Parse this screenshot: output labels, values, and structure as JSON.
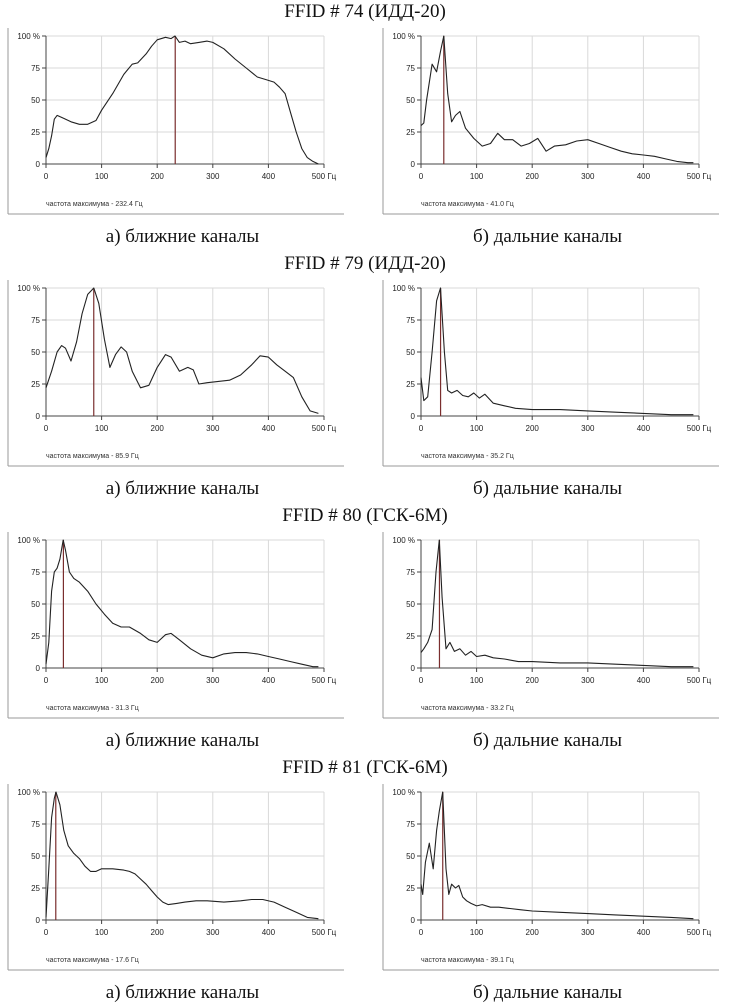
{
  "figure": {
    "blocks": [
      {
        "title": "FFID # 74 (ИДД-20)",
        "near_caption": "а) ближние каналы",
        "far_caption": "б) дальние каналы"
      },
      {
        "title": "FFID # 79 (ИДД-20)",
        "near_caption": "а) ближние каналы",
        "far_caption": "б) дальние каналы"
      },
      {
        "title": "FFID # 80 (ГСК-6М)",
        "near_caption": "а) ближние каналы",
        "far_caption": "б) дальние каналы"
      },
      {
        "title": "FFID # 81 (ГСК-6М)",
        "near_caption": "а) ближние каналы",
        "far_caption": "б) дальние каналы"
      }
    ]
  },
  "colors": {
    "curve": "#222222",
    "marker": "#7a2e2e",
    "grid": "#d9d9d9",
    "axis": "#444444",
    "frame": "#9a9a9a"
  },
  "chart_data": [
    {
      "type": "line",
      "panel": "near",
      "block": 0,
      "xlim": [
        0,
        500
      ],
      "ylim": [
        0,
        100
      ],
      "xticks": [
        "0",
        "100",
        "200",
        "300",
        "400",
        "500 Гц"
      ],
      "yticks": [
        "0",
        "25",
        "50",
        "75",
        "100 %"
      ],
      "peak_x": 232.4,
      "footer": "частота максимума - 232.4 Гц",
      "x": [
        0,
        5,
        10,
        15,
        20,
        30,
        45,
        60,
        75,
        90,
        100,
        120,
        140,
        155,
        165,
        180,
        190,
        200,
        215,
        225,
        232,
        240,
        250,
        260,
        275,
        290,
        300,
        320,
        340,
        360,
        380,
        395,
        410,
        420,
        430,
        440,
        450,
        460,
        470,
        480,
        490
      ],
      "y": [
        5,
        12,
        22,
        35,
        38,
        36,
        33,
        31,
        31,
        34,
        42,
        55,
        70,
        78,
        79,
        86,
        92,
        97,
        99,
        98,
        100,
        95,
        96,
        94,
        95,
        96,
        95,
        90,
        82,
        75,
        68,
        66,
        64,
        60,
        55,
        40,
        25,
        12,
        5,
        2,
        0
      ]
    },
    {
      "type": "line",
      "panel": "far",
      "block": 0,
      "xlim": [
        0,
        500
      ],
      "ylim": [
        0,
        100
      ],
      "xticks": [
        "0",
        "100",
        "200",
        "300",
        "400",
        "500 Гц"
      ],
      "yticks": [
        "0",
        "25",
        "50",
        "75",
        "100 %"
      ],
      "peak_x": 41.0,
      "footer": "частота максимума - 41.0 Гц",
      "x": [
        0,
        5,
        10,
        20,
        28,
        35,
        41,
        48,
        55,
        62,
        70,
        80,
        95,
        110,
        125,
        138,
        150,
        165,
        180,
        195,
        210,
        225,
        240,
        260,
        280,
        300,
        320,
        340,
        360,
        380,
        400,
        420,
        440,
        460,
        480,
        490
      ],
      "y": [
        30,
        32,
        50,
        78,
        72,
        88,
        100,
        55,
        33,
        38,
        41,
        28,
        20,
        14,
        16,
        24,
        19,
        19,
        14,
        16,
        20,
        10,
        14,
        15,
        18,
        19,
        16,
        13,
        10,
        8,
        7,
        6,
        4,
        2,
        1,
        1
      ]
    },
    {
      "type": "line",
      "panel": "near",
      "block": 1,
      "xlim": [
        0,
        500
      ],
      "ylim": [
        0,
        100
      ],
      "xticks": [
        "0",
        "100",
        "200",
        "300",
        "400",
        "500 Гц"
      ],
      "yticks": [
        "0",
        "25",
        "50",
        "75",
        "100 %"
      ],
      "peak_x": 85.9,
      "footer": "частота максимума - 85.9 Гц",
      "x": [
        0,
        10,
        20,
        28,
        35,
        45,
        55,
        65,
        75,
        86,
        95,
        105,
        115,
        125,
        135,
        145,
        155,
        170,
        185,
        200,
        215,
        225,
        240,
        255,
        265,
        275,
        290,
        310,
        330,
        350,
        370,
        385,
        400,
        415,
        430,
        445,
        460,
        475,
        490
      ],
      "y": [
        22,
        35,
        50,
        55,
        53,
        43,
        58,
        80,
        95,
        100,
        88,
        60,
        38,
        48,
        54,
        50,
        35,
        22,
        24,
        38,
        48,
        46,
        35,
        38,
        36,
        25,
        26,
        27,
        28,
        32,
        40,
        47,
        46,
        40,
        35,
        30,
        15,
        4,
        2
      ]
    },
    {
      "type": "line",
      "panel": "far",
      "block": 1,
      "xlim": [
        0,
        500
      ],
      "ylim": [
        0,
        100
      ],
      "xticks": [
        "0",
        "100",
        "200",
        "300",
        "400",
        "500 Гц"
      ],
      "yticks": [
        "0",
        "25",
        "50",
        "75",
        "100 %"
      ],
      "peak_x": 35.2,
      "footer": "частота максимума - 35.2 Гц",
      "x": [
        0,
        5,
        12,
        20,
        28,
        35,
        42,
        48,
        55,
        65,
        75,
        85,
        95,
        105,
        115,
        130,
        150,
        170,
        200,
        250,
        300,
        350,
        400,
        450,
        490
      ],
      "y": [
        30,
        12,
        15,
        50,
        90,
        100,
        50,
        20,
        18,
        20,
        16,
        15,
        18,
        14,
        17,
        10,
        8,
        6,
        5,
        5,
        4,
        3,
        2,
        1,
        1
      ]
    },
    {
      "type": "line",
      "panel": "near",
      "block": 2,
      "xlim": [
        0,
        500
      ],
      "ylim": [
        0,
        100
      ],
      "xticks": [
        "0",
        "100",
        "200",
        "300",
        "400",
        "500 Гц"
      ],
      "yticks": [
        "0",
        "25",
        "50",
        "75",
        "100 %"
      ],
      "peak_x": 31.3,
      "footer": "частота максимума - 31.3 Гц",
      "x": [
        0,
        5,
        10,
        15,
        20,
        25,
        31,
        35,
        42,
        50,
        60,
        75,
        90,
        105,
        120,
        135,
        150,
        170,
        185,
        200,
        215,
        225,
        240,
        260,
        280,
        300,
        320,
        340,
        360,
        380,
        400,
        420,
        440,
        460,
        480,
        490
      ],
      "y": [
        3,
        20,
        60,
        75,
        78,
        85,
        100,
        92,
        75,
        70,
        67,
        60,
        50,
        42,
        35,
        32,
        32,
        27,
        22,
        20,
        26,
        27,
        22,
        15,
        10,
        8,
        11,
        12,
        12,
        11,
        9,
        7,
        5,
        3,
        1,
        1
      ]
    },
    {
      "type": "line",
      "panel": "far",
      "block": 2,
      "xlim": [
        0,
        500
      ],
      "ylim": [
        0,
        100
      ],
      "xticks": [
        "0",
        "100",
        "200",
        "300",
        "400",
        "500 Гц"
      ],
      "yticks": [
        "0",
        "25",
        "50",
        "75",
        "100 %"
      ],
      "peak_x": 33.2,
      "footer": "частота максимума - 33.2 Гц",
      "x": [
        0,
        5,
        12,
        20,
        27,
        33,
        38,
        45,
        52,
        60,
        70,
        80,
        90,
        100,
        115,
        130,
        150,
        175,
        200,
        250,
        300,
        350,
        400,
        450,
        490
      ],
      "y": [
        12,
        15,
        20,
        30,
        75,
        100,
        55,
        15,
        20,
        13,
        15,
        10,
        13,
        9,
        10,
        8,
        7,
        5,
        5,
        4,
        4,
        3,
        2,
        1,
        1
      ]
    },
    {
      "type": "line",
      "panel": "near",
      "block": 3,
      "xlim": [
        0,
        500
      ],
      "ylim": [
        0,
        100
      ],
      "xticks": [
        "0",
        "100",
        "200",
        "300",
        "400",
        "500 Гц"
      ],
      "yticks": [
        "0",
        "25",
        "50",
        "75",
        "100 %"
      ],
      "peak_x": 17.6,
      "footer": "частота максимума - 17.6 Гц",
      "x": [
        0,
        5,
        10,
        15,
        18,
        25,
        32,
        40,
        50,
        60,
        70,
        80,
        90,
        100,
        120,
        140,
        150,
        160,
        170,
        180,
        190,
        200,
        210,
        220,
        235,
        250,
        270,
        290,
        320,
        350,
        370,
        390,
        410,
        430,
        450,
        470,
        490
      ],
      "y": [
        2,
        40,
        80,
        95,
        100,
        90,
        70,
        58,
        52,
        48,
        42,
        38,
        38,
        40,
        40,
        39,
        38,
        36,
        32,
        28,
        23,
        18,
        14,
        12,
        13,
        14,
        15,
        15,
        14,
        15,
        16,
        16,
        14,
        10,
        6,
        2,
        1
      ]
    },
    {
      "type": "line",
      "panel": "far",
      "block": 3,
      "xlim": [
        0,
        500
      ],
      "ylim": [
        0,
        100
      ],
      "xticks": [
        "0",
        "100",
        "200",
        "300",
        "400",
        "500 Гц"
      ],
      "yticks": [
        "0",
        "25",
        "50",
        "75",
        "100 %"
      ],
      "peak_x": 39.1,
      "footer": "частота максимума - 39.1 Гц",
      "x": [
        0,
        3,
        8,
        15,
        22,
        28,
        33,
        39,
        45,
        50,
        55,
        62,
        68,
        75,
        82,
        90,
        100,
        110,
        125,
        140,
        160,
        180,
        200,
        250,
        300,
        350,
        400,
        450,
        490
      ],
      "y": [
        28,
        20,
        45,
        60,
        40,
        70,
        85,
        100,
        40,
        20,
        28,
        25,
        27,
        18,
        15,
        13,
        11,
        12,
        10,
        10,
        9,
        8,
        7,
        6,
        5,
        4,
        3,
        2,
        1
      ]
    }
  ]
}
